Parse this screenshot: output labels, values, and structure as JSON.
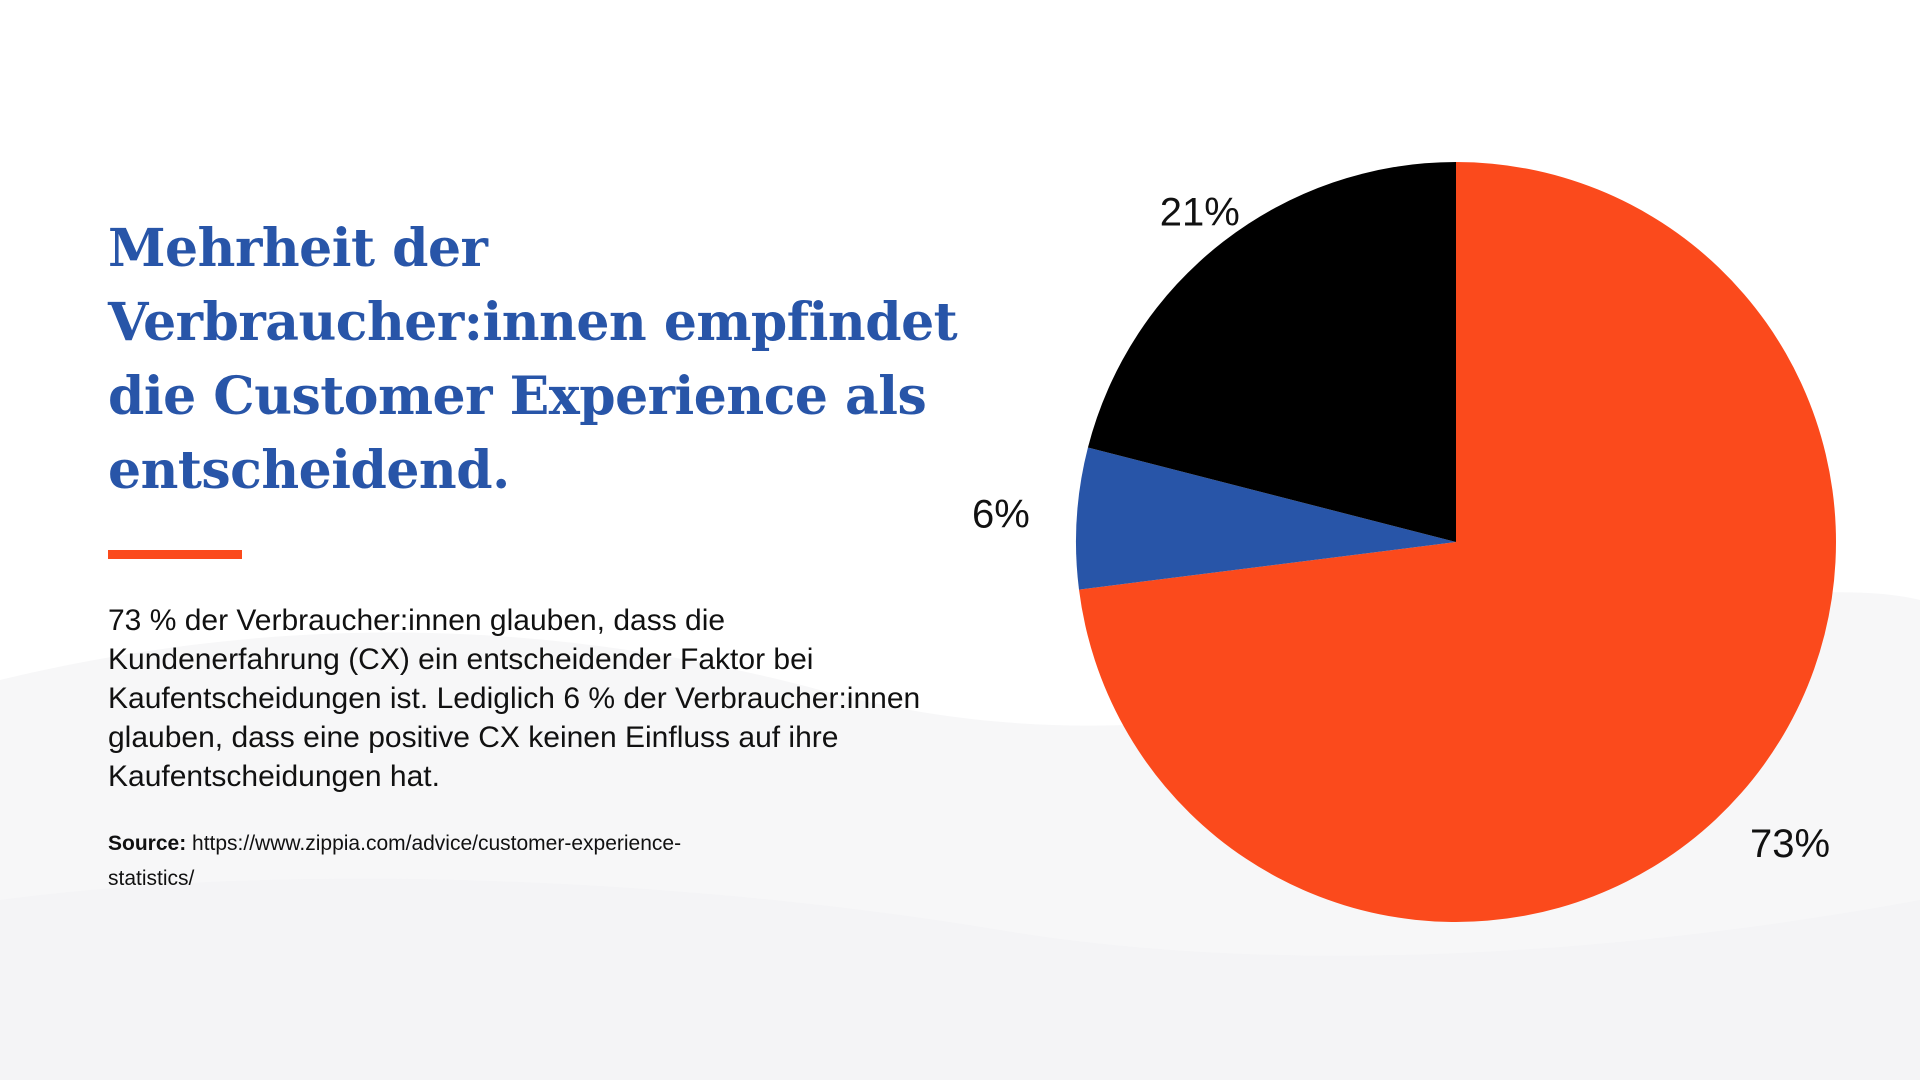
{
  "headline": "Mehrheit der Verbraucher:innen empfindet die Customer Experience als entscheidend.",
  "description": "73 % der Verbraucher:innen glauben, dass die Kundenerfahrung (CX) ein entscheidender Faktor bei Kaufentscheidungen ist. Lediglich 6 % der Verbraucher:innen glauben, dass eine positive CX keinen Einfluss auf ihre Kaufentscheidungen hat.",
  "source": {
    "label": "Source:",
    "text": "https://www.zippia.com/advice/customer-experience-statistics/"
  },
  "colors": {
    "headline": "#2855a8",
    "accent": "#fb4a1c",
    "text": "#111111"
  },
  "chart_data": {
    "type": "pie",
    "title": "",
    "start_angle_deg": 0,
    "direction": "clockwise",
    "slices": [
      {
        "label": "73%",
        "value": 73,
        "color": "#fb4a1c"
      },
      {
        "label": "6%",
        "value": 6,
        "color": "#2855a8"
      },
      {
        "label": "21%",
        "value": 21,
        "color": "#000000"
      }
    ],
    "legend": "none"
  }
}
